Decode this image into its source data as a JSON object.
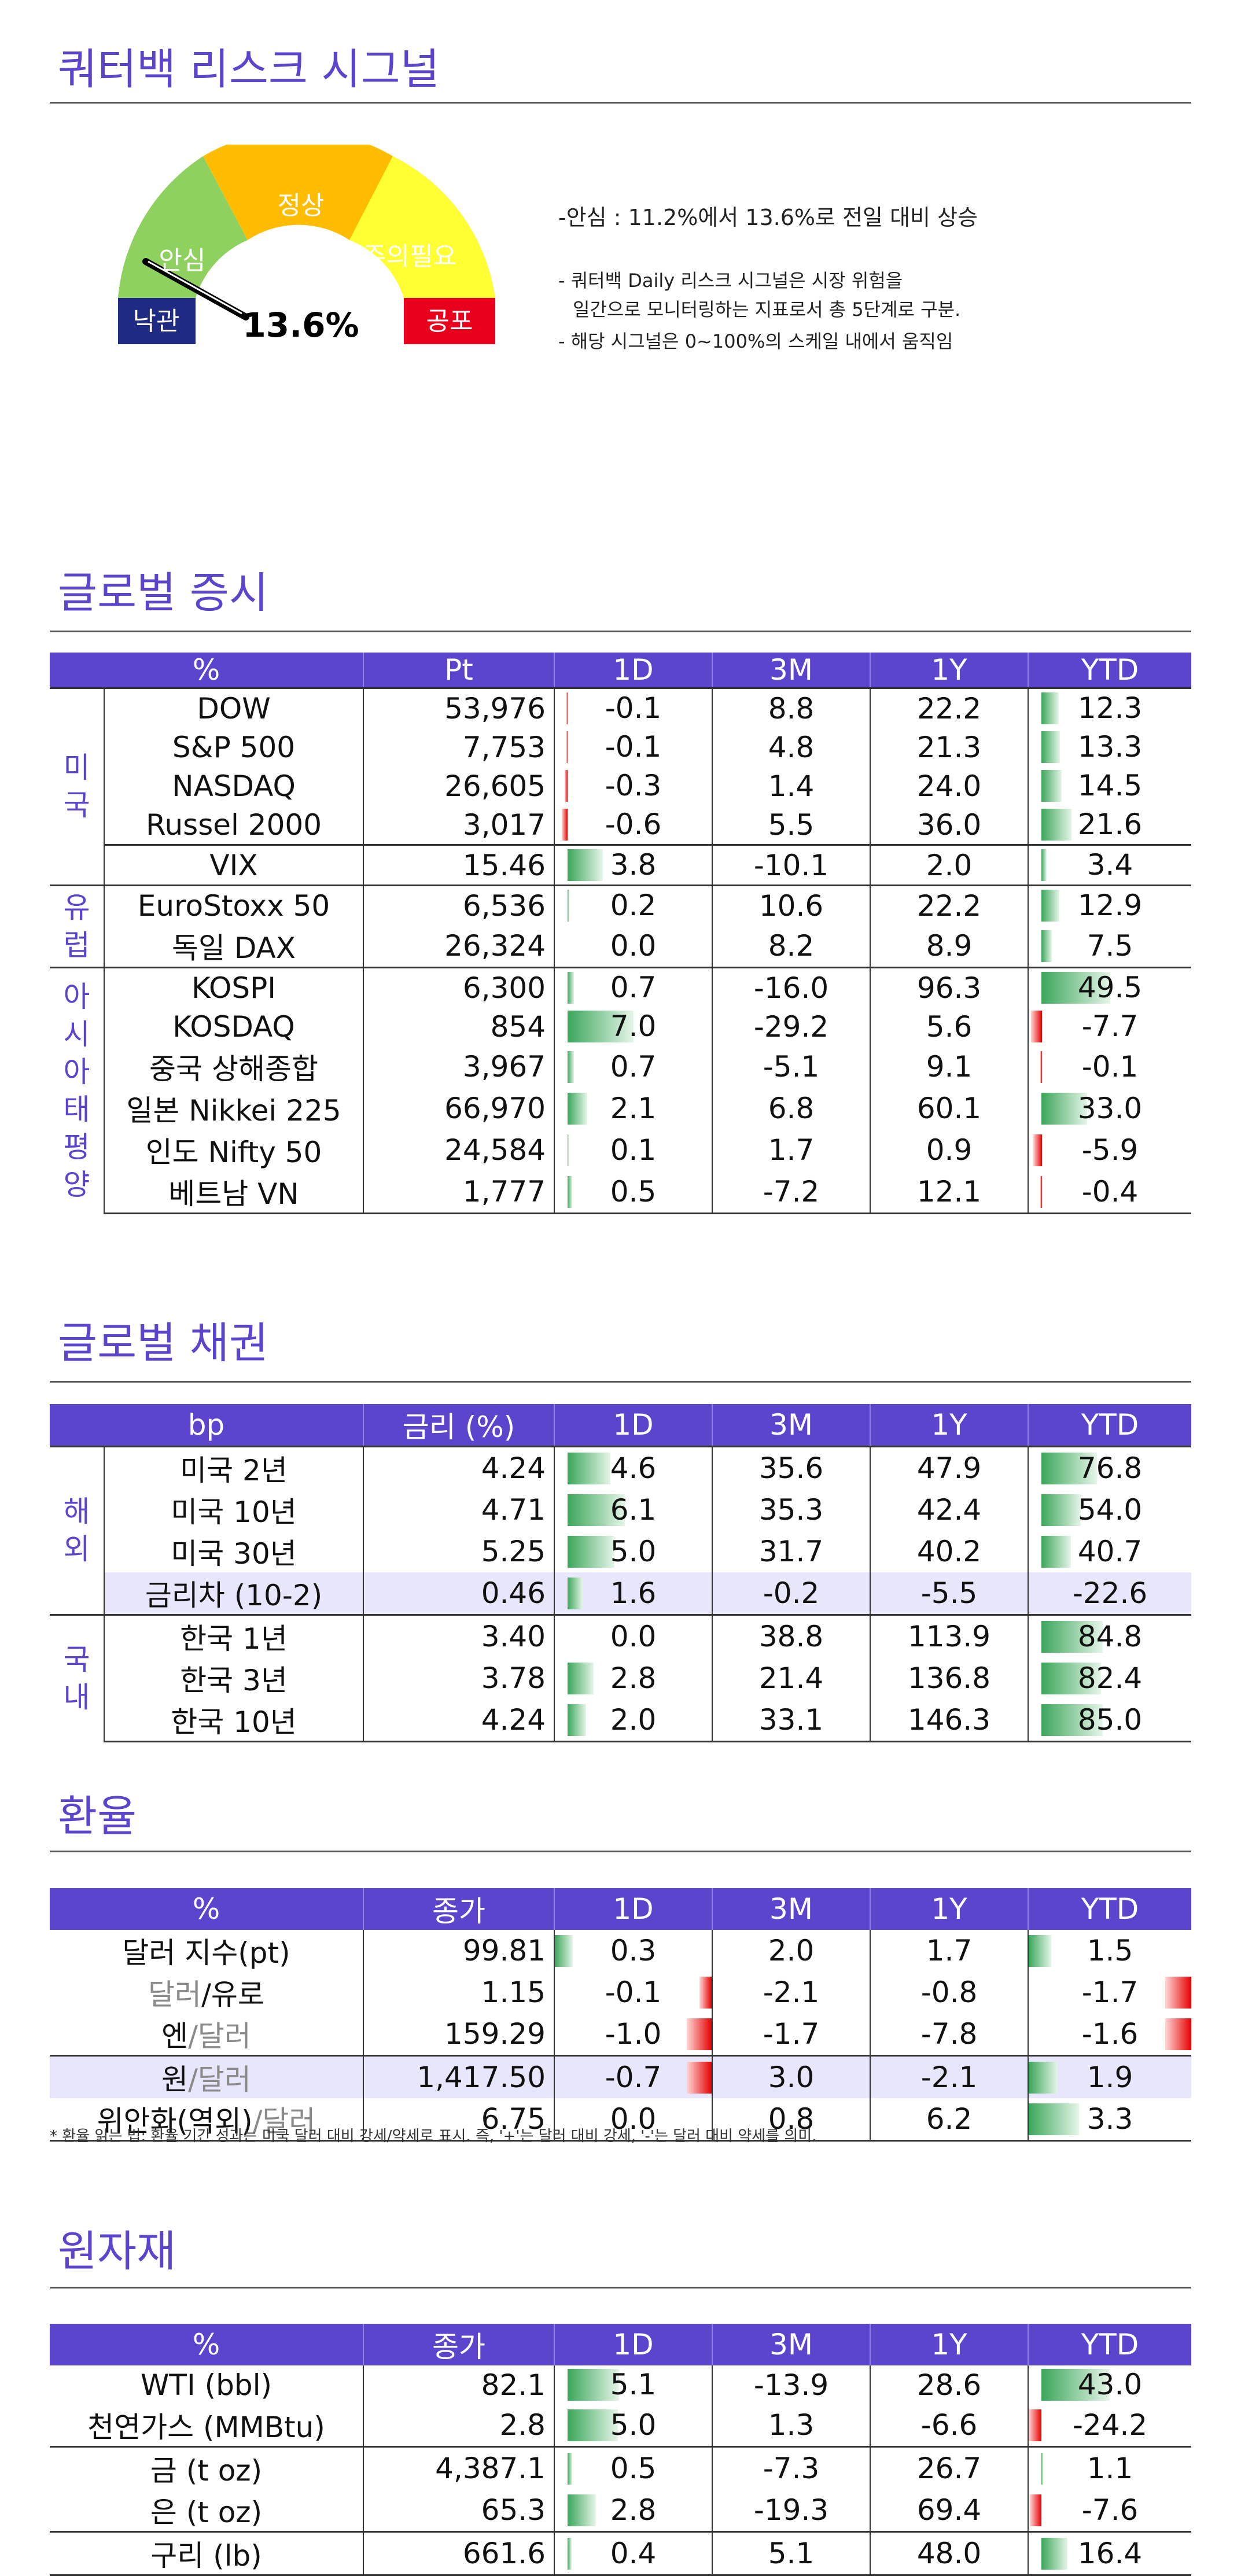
{
  "risk": {
    "title": "쿼터백 리스크 시그널",
    "gauge_labels": {
      "panic": "낙관",
      "relief": "안심",
      "normal": "정상",
      "caution": "주의필요",
      "fear": "공포"
    },
    "value": "13.6%",
    "value_fraction": 0.136,
    "headline": "-안심 : 11.2%에서 13.6%로 전일 대비 상승",
    "note1_line1": "- 쿼터백 Daily 리스크 시그널은 시장 위험을",
    "note1_line2": "일간으로 모니터링하는 지표로서 총 5단계로 구분.",
    "note2": "- 해당 시그널은 0~100%의 스케일 내에서 움직임"
  },
  "equity": {
    "title": "글로벌 증시",
    "headers": [
      "%",
      "Pt",
      "1D",
      "3M",
      "1Y",
      "YTD"
    ],
    "scale": {
      "d1": 7.0,
      "ytd": 49.5
    },
    "groups": [
      {
        "label": "미\n국",
        "rows": [
          {
            "name": "DOW",
            "pt": "53,976",
            "d1": "-0.1",
            "m3": "8.8",
            "y1": "22.2",
            "ytd": "12.3"
          },
          {
            "name": "S&P 500",
            "pt": "7,753",
            "d1": "-0.1",
            "m3": "4.8",
            "y1": "21.3",
            "ytd": "13.3"
          },
          {
            "name": "NASDAQ",
            "pt": "26,605",
            "d1": "-0.3",
            "m3": "1.4",
            "y1": "24.0",
            "ytd": "14.5"
          },
          {
            "name": "Russel 2000",
            "pt": "3,017",
            "d1": "-0.6",
            "m3": "5.5",
            "y1": "36.0",
            "ytd": "21.6"
          },
          {
            "name": "VIX",
            "pt": "15.46",
            "d1": "3.8",
            "m3": "-10.1",
            "y1": "2.0",
            "ytd": "3.4",
            "sep": true
          }
        ]
      },
      {
        "label": "유\n럽",
        "rows": [
          {
            "name": "EuroStoxx 50",
            "pt": "6,536",
            "d1": "0.2",
            "m3": "10.6",
            "y1": "22.2",
            "ytd": "12.9"
          },
          {
            "name": "독일 DAX",
            "pt": "26,324",
            "d1": "0.0",
            "m3": "8.2",
            "y1": "8.9",
            "ytd": "7.5"
          }
        ]
      },
      {
        "label": "아\n시\n아\n태\n평\n양",
        "rows": [
          {
            "name": "KOSPI",
            "pt": "6,300",
            "d1": "0.7",
            "m3": "-16.0",
            "y1": "96.3",
            "ytd": "49.5"
          },
          {
            "name": "KOSDAQ",
            "pt": "854",
            "d1": "7.0",
            "m3": "-29.2",
            "y1": "5.6",
            "ytd": "-7.7"
          },
          {
            "name": "중국 상해종합",
            "pt": "3,967",
            "d1": "0.7",
            "m3": "-5.1",
            "y1": "9.1",
            "ytd": "-0.1"
          },
          {
            "name": "일본 Nikkei 225",
            "pt": "66,970",
            "d1": "2.1",
            "m3": "6.8",
            "y1": "60.1",
            "ytd": "33.0"
          },
          {
            "name": "인도 Nifty 50",
            "pt": "24,584",
            "d1": "0.1",
            "m3": "1.7",
            "y1": "0.9",
            "ytd": "-5.9"
          },
          {
            "name": "베트남 VN",
            "pt": "1,777",
            "d1": "0.5",
            "m3": "-7.2",
            "y1": "12.1",
            "ytd": "-0.4"
          }
        ]
      }
    ]
  },
  "bond": {
    "title": "글로벌 채권",
    "headers": [
      "bp",
      "금리 (%)",
      "1D",
      "3M",
      "1Y",
      "YTD"
    ],
    "scale": {
      "d1": 7.0,
      "ytd": 95
    },
    "groups": [
      {
        "label": "해\n외",
        "rows": [
          {
            "name": "미국 2년",
            "pt": "4.24",
            "d1": "4.6",
            "m3": "35.6",
            "y1": "47.9",
            "ytd": "76.8"
          },
          {
            "name": "미국 10년",
            "pt": "4.71",
            "d1": "6.1",
            "m3": "35.3",
            "y1": "42.4",
            "ytd": "54.0"
          },
          {
            "name": "미국 30년",
            "pt": "5.25",
            "d1": "5.0",
            "m3": "31.7",
            "y1": "40.2",
            "ytd": "40.7"
          },
          {
            "name": "금리차 (10-2)",
            "pt": "0.46",
            "d1": "1.6",
            "m3": "-0.2",
            "y1": "-5.5",
            "ytd": "-22.6",
            "hl": true,
            "noytdbar": true
          }
        ]
      },
      {
        "label": "국\n내",
        "rows": [
          {
            "name": "한국 1년",
            "pt": "3.40",
            "d1": "0.0",
            "m3": "38.8",
            "y1": "113.9",
            "ytd": "84.8"
          },
          {
            "name": "한국 3년",
            "pt": "3.78",
            "d1": "2.8",
            "m3": "21.4",
            "y1": "136.8",
            "ytd": "82.4"
          },
          {
            "name": "한국 10년",
            "pt": "4.24",
            "d1": "2.0",
            "m3": "33.1",
            "y1": "146.3",
            "ytd": "85.0"
          }
        ]
      }
    ]
  },
  "fx": {
    "title": "환율",
    "headers": [
      "%",
      "종가",
      "1D",
      "3M",
      "1Y",
      "YTD"
    ],
    "scale": {
      "d1": 1.1,
      "ytd": 4.5
    },
    "rows": [
      {
        "name_a": "달러 지수(pt)",
        "name_b": "",
        "pt": "99.81",
        "d1": "0.3",
        "m3": "2.0",
        "y1": "1.7",
        "ytd": "1.5"
      },
      {
        "name_a": "달러",
        "name_b": "/유로",
        "pt": "1.15",
        "d1": "-0.1",
        "m3": "-2.1",
        "y1": "-0.8",
        "ytd": "-1.7"
      },
      {
        "name_a": "엔",
        "name_b": "/달러",
        "pt": "159.29",
        "d1": "-1.0",
        "m3": "-1.7",
        "y1": "-7.8",
        "ytd": "-1.6"
      },
      {
        "name_a": "원",
        "name_b": "/달러",
        "pt": "1,417.50",
        "d1": "-0.7",
        "m3": "3.0",
        "y1": "-2.1",
        "ytd": "1.9",
        "hl": true
      },
      {
        "name_a": "위안화(역외)",
        "name_b": "/달러",
        "pt": "6.75",
        "d1": "0.0",
        "m3": "0.8",
        "y1": "6.2",
        "ytd": "3.3"
      }
    ],
    "footnote": "* 환율 읽는 법: 환율 기간 성과는 미국 달러 대비 강세/약세로 표시. 즉, '+'는 달러 대비 강세, '-'는 달러 대비 약세를 의미."
  },
  "commodity": {
    "title": "원자재",
    "headers": [
      "%",
      "종가",
      "1D",
      "3M",
      "1Y",
      "YTD"
    ],
    "scale": {
      "d1": 6.5,
      "ytd": 43.0
    },
    "rows": [
      {
        "name": "WTI (bbl)",
        "pt": "82.1",
        "d1": "5.1",
        "m3": "-13.9",
        "y1": "28.6",
        "ytd": "43.0"
      },
      {
        "name": "천연가스 (MMBtu)",
        "pt": "2.8",
        "d1": "5.0",
        "m3": "1.3",
        "y1": "-6.6",
        "ytd": "-24.2"
      },
      {
        "name": "금 (t oz)",
        "pt": "4,387.1",
        "d1": "0.5",
        "m3": "-7.3",
        "y1": "26.7",
        "ytd": "1.1",
        "sep": true
      },
      {
        "name": "은 (t oz)",
        "pt": "65.3",
        "d1": "2.8",
        "m3": "-19.3",
        "y1": "69.4",
        "ytd": "-7.6"
      },
      {
        "name": "구리 (lb)",
        "pt": "661.6",
        "d1": "0.4",
        "m3": "5.1",
        "y1": "48.0",
        "ytd": "16.4",
        "sep": true
      }
    ]
  },
  "colors": {
    "accent": "#5b45cc",
    "positive": "#3ba65a",
    "negative": "#e60000",
    "highlight": "#e8e6fa"
  }
}
